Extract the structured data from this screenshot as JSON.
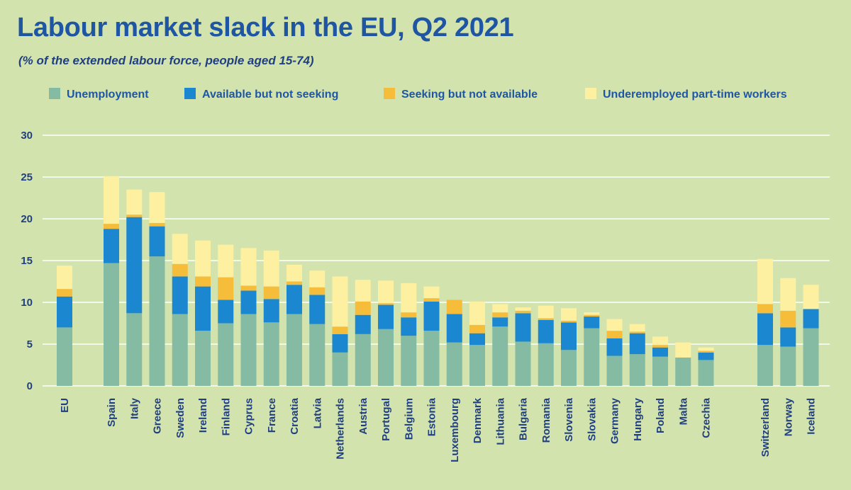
{
  "colors": {
    "background": "#d3e3ad",
    "grid": "#ffffff",
    "unemployment": "#86bba3",
    "available_not_seeking": "#1a87d0",
    "seeking_not_available": "#f6bd3a",
    "underemployed": "#fdf0a0"
  },
  "chart_data": {
    "type": "bar",
    "stacked": true,
    "title": "Labour market slack in the EU, Q2 2021",
    "subtitle": "(% of the extended labour force, people aged 15-74)",
    "xlabel": "",
    "ylabel": "",
    "ylim": [
      0,
      30
    ],
    "yticks": [
      0,
      5,
      10,
      15,
      20,
      25,
      30
    ],
    "grid": true,
    "legend_position": "top",
    "categories": [
      "EU",
      "Spain",
      "Italy",
      "Greece",
      "Sweden",
      "Ireland",
      "Finland",
      "Cyprus",
      "France",
      "Croatia",
      "Latvia",
      "Netherlands",
      "Austria",
      "Portugal",
      "Belgium",
      "Estonia",
      "Luxembourg",
      "Denmark",
      "Lithuania",
      "Bulgaria",
      "Romania",
      "Slovenia",
      "Slovakia",
      "Germany",
      "Hungary",
      "Poland",
      "Malta",
      "Czechia",
      "Switzerland",
      "Norway",
      "Iceland"
    ],
    "series": [
      {
        "name": "Unemployment",
        "values": [
          7.0,
          14.7,
          8.7,
          15.5,
          8.6,
          6.6,
          7.5,
          8.6,
          7.6,
          8.6,
          7.4,
          4.0,
          6.2,
          6.8,
          6.0,
          6.6,
          5.2,
          4.9,
          7.1,
          5.3,
          5.1,
          4.3,
          6.9,
          3.6,
          3.8,
          3.5,
          3.4,
          3.1,
          4.9,
          4.7,
          6.9
        ]
      },
      {
        "name": "Available but not seeking",
        "values": [
          3.7,
          4.1,
          11.5,
          3.6,
          4.5,
          5.3,
          2.8,
          2.8,
          2.8,
          3.5,
          3.5,
          2.2,
          2.3,
          2.9,
          2.2,
          3.5,
          3.4,
          1.4,
          1.1,
          3.4,
          2.8,
          3.3,
          1.4,
          2.1,
          2.5,
          1.1,
          0.0,
          0.9,
          3.8,
          2.3,
          2.3
        ]
      },
      {
        "name": "Seeking but not available",
        "values": [
          0.9,
          0.6,
          0.3,
          0.4,
          1.5,
          1.2,
          2.7,
          0.6,
          1.5,
          0.4,
          0.9,
          0.9,
          1.6,
          0.2,
          0.6,
          0.4,
          1.7,
          1.0,
          0.6,
          0.3,
          0.2,
          0.2,
          0.2,
          0.9,
          0.2,
          0.3,
          0.0,
          0.2,
          1.1,
          2.0,
          0.0
        ]
      },
      {
        "name": "Underemployed part-time workers",
        "values": [
          2.8,
          5.7,
          3.0,
          3.7,
          3.6,
          4.3,
          3.9,
          4.5,
          4.3,
          2.0,
          2.0,
          6.0,
          2.6,
          2.7,
          3.5,
          1.4,
          0.0,
          2.8,
          1.0,
          0.4,
          1.5,
          1.5,
          0.3,
          1.4,
          0.9,
          1.0,
          1.8,
          0.4,
          5.4,
          3.9,
          2.9
        ]
      }
    ]
  }
}
